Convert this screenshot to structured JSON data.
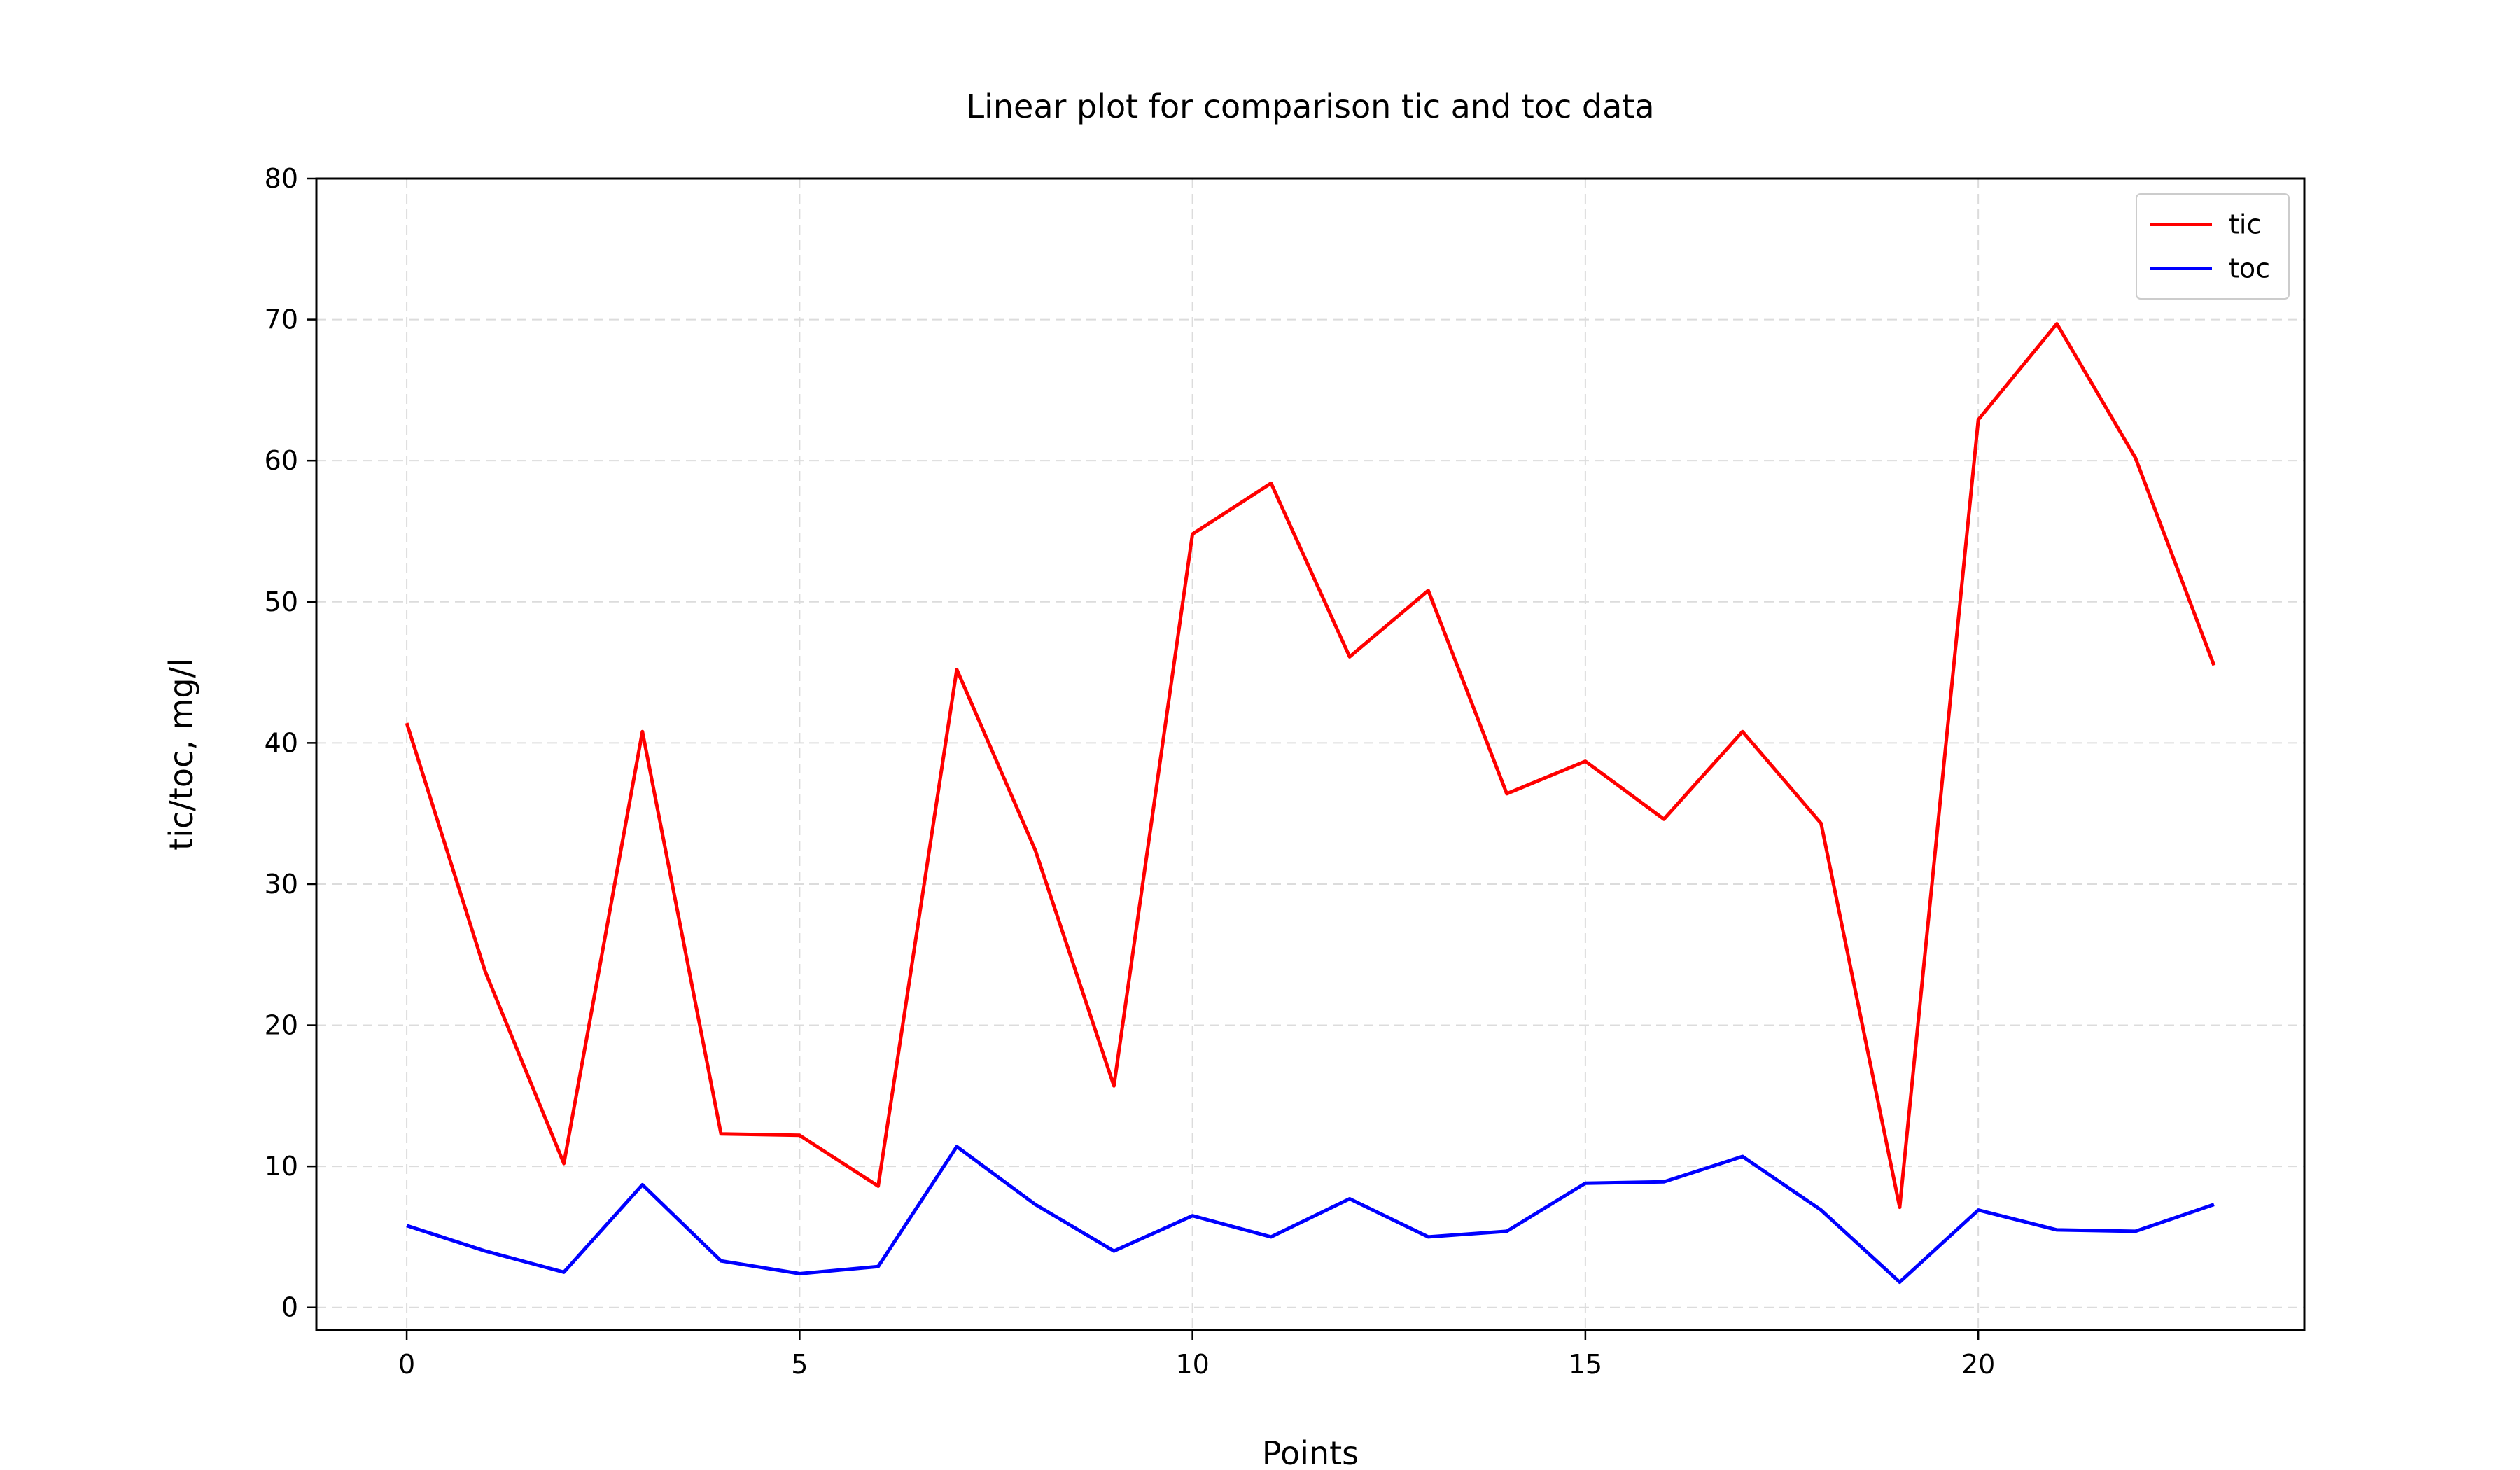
{
  "chart_data": {
    "type": "line",
    "title": "Linear plot for comparison tic and toc data",
    "xlabel": "Points",
    "ylabel": "tic/toc, mg/l",
    "x": [
      0,
      1,
      2,
      3,
      4,
      5,
      6,
      7,
      8,
      9,
      10,
      11,
      12,
      13,
      14,
      15,
      16,
      17,
      18,
      19,
      20,
      21,
      22,
      23
    ],
    "xlim": [
      -1.15,
      24.15
    ],
    "ylim": [
      -1.6,
      80
    ],
    "xticks": [
      0,
      5,
      10,
      15,
      20
    ],
    "yticks": [
      0,
      10,
      20,
      30,
      40,
      50,
      60,
      70,
      80
    ],
    "grid": true,
    "legend_position": "top-right",
    "series": [
      {
        "name": "tic",
        "color": "#ff0000",
        "values": [
          41.4,
          23.8,
          10.2,
          40.8,
          12.3,
          12.2,
          8.6,
          45.2,
          32.4,
          15.7,
          54.8,
          58.4,
          46.1,
          50.8,
          36.4,
          38.7,
          34.6,
          40.8,
          34.3,
          7.1,
          62.9,
          69.7,
          60.2,
          45.5
        ]
      },
      {
        "name": "toc",
        "color": "#0000ff",
        "values": [
          5.8,
          4.0,
          2.5,
          8.7,
          3.3,
          2.4,
          2.9,
          11.4,
          7.3,
          4.0,
          6.5,
          5.0,
          7.7,
          5.0,
          5.4,
          8.8,
          8.9,
          10.7,
          6.9,
          1.8,
          6.9,
          5.5,
          5.4,
          7.3
        ]
      }
    ]
  }
}
